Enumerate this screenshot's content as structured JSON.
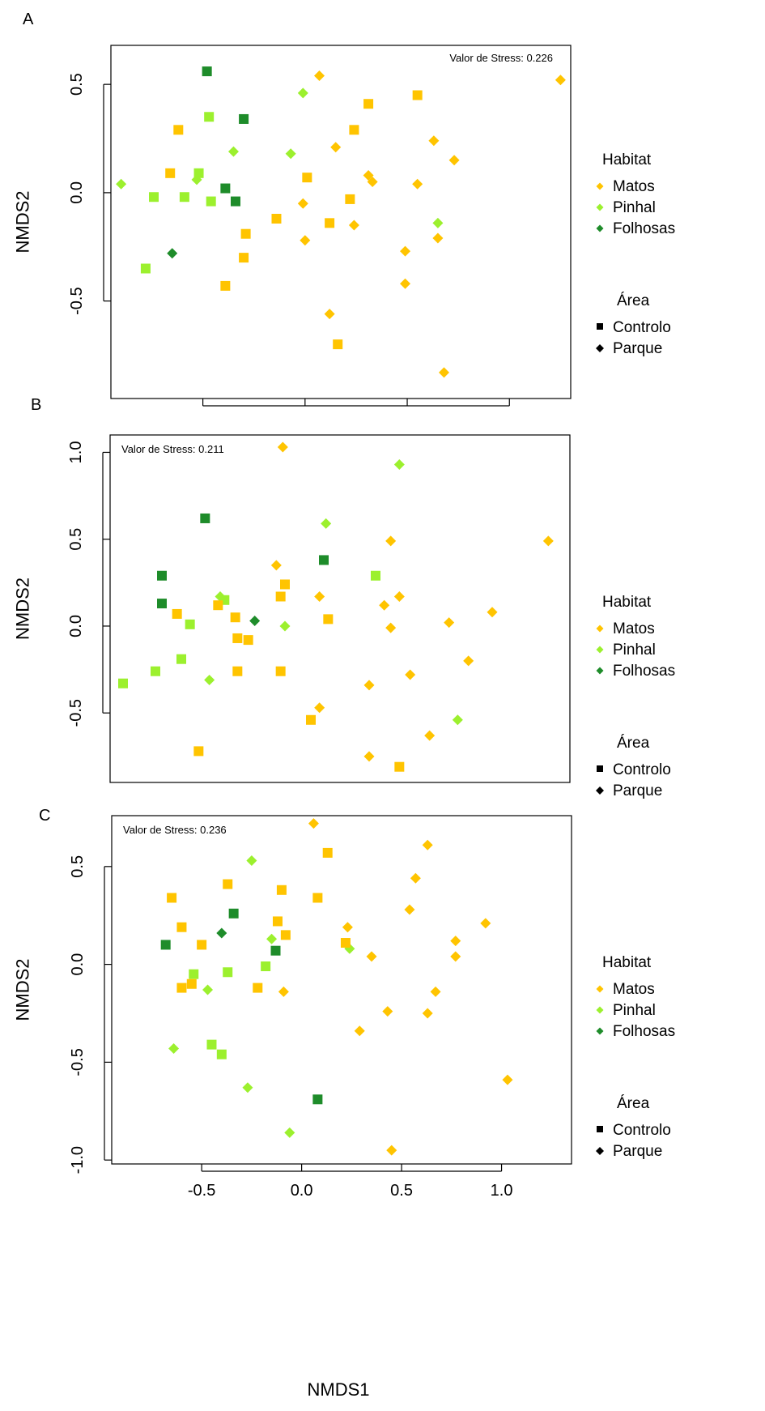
{
  "panels_common": {
    "ylabel": "NMDS2",
    "xlabel": "NMDS1",
    "legend": {
      "habitat_title": "Habitat",
      "habitat": [
        {
          "label": "Matos",
          "color": "#FFC400"
        },
        {
          "label": "Pinhal",
          "color": "#9CF02E"
        },
        {
          "label": "Folhosas",
          "color": "#1E8C2A"
        }
      ],
      "area_title": "Área",
      "area": [
        {
          "label": "Controlo",
          "shape": "square"
        },
        {
          "label": "Parque",
          "shape": "diamond"
        }
      ]
    }
  },
  "chart_data": [
    {
      "type": "scatter",
      "panel_letter": "A",
      "stress_label": "Valor de Stress: 0.226",
      "stress_position": "top-right",
      "legend_placement": "right",
      "grid": false,
      "xlim": [
        -0.95,
        1.3
      ],
      "ylim": [
        -0.95,
        0.68
      ],
      "yticks": [
        -0.5,
        0.0,
        0.5
      ],
      "ytick_labels": [
        "-0.5",
        "0.0",
        "0.5"
      ],
      "xticks": [
        -0.5,
        0.0,
        0.5,
        1.0
      ],
      "xtick_labels": [],
      "points": [
        {
          "x": -0.48,
          "y": 0.56,
          "habitat": "Folhosas",
          "shape": "square"
        },
        {
          "x": -0.3,
          "y": 0.34,
          "habitat": "Folhosas",
          "shape": "square"
        },
        {
          "x": -0.39,
          "y": 0.02,
          "habitat": "Folhosas",
          "shape": "square"
        },
        {
          "x": -0.34,
          "y": -0.04,
          "habitat": "Folhosas",
          "shape": "square"
        },
        {
          "x": -0.65,
          "y": -0.28,
          "habitat": "Folhosas",
          "shape": "diamond"
        },
        {
          "x": -0.47,
          "y": 0.35,
          "habitat": "Pinhal",
          "shape": "square"
        },
        {
          "x": -0.52,
          "y": 0.09,
          "habitat": "Pinhal",
          "shape": "square"
        },
        {
          "x": -0.53,
          "y": 0.06,
          "habitat": "Pinhal",
          "shape": "diamond"
        },
        {
          "x": -0.74,
          "y": -0.02,
          "habitat": "Pinhal",
          "shape": "square"
        },
        {
          "x": -0.59,
          "y": -0.02,
          "habitat": "Pinhal",
          "shape": "square"
        },
        {
          "x": -0.46,
          "y": -0.04,
          "habitat": "Pinhal",
          "shape": "square"
        },
        {
          "x": -0.9,
          "y": 0.04,
          "habitat": "Pinhal",
          "shape": "diamond"
        },
        {
          "x": -0.78,
          "y": -0.35,
          "habitat": "Pinhal",
          "shape": "square"
        },
        {
          "x": -0.35,
          "y": 0.19,
          "habitat": "Pinhal",
          "shape": "diamond"
        },
        {
          "x": -0.07,
          "y": 0.18,
          "habitat": "Pinhal",
          "shape": "diamond"
        },
        {
          "x": -0.01,
          "y": 0.46,
          "habitat": "Pinhal",
          "shape": "diamond"
        },
        {
          "x": 0.65,
          "y": -0.14,
          "habitat": "Pinhal",
          "shape": "diamond"
        },
        {
          "x": -0.62,
          "y": 0.29,
          "habitat": "Matos",
          "shape": "square"
        },
        {
          "x": -0.66,
          "y": 0.09,
          "habitat": "Matos",
          "shape": "square"
        },
        {
          "x": -0.14,
          "y": -0.12,
          "habitat": "Matos",
          "shape": "square"
        },
        {
          "x": -0.29,
          "y": -0.19,
          "habitat": "Matos",
          "shape": "square"
        },
        {
          "x": -0.3,
          "y": -0.3,
          "habitat": "Matos",
          "shape": "square"
        },
        {
          "x": -0.39,
          "y": -0.43,
          "habitat": "Matos",
          "shape": "square"
        },
        {
          "x": 0.07,
          "y": 0.54,
          "habitat": "Matos",
          "shape": "diamond"
        },
        {
          "x": 0.31,
          "y": 0.41,
          "habitat": "Matos",
          "shape": "square"
        },
        {
          "x": 0.55,
          "y": 0.45,
          "habitat": "Matos",
          "shape": "square"
        },
        {
          "x": 0.24,
          "y": 0.29,
          "habitat": "Matos",
          "shape": "square"
        },
        {
          "x": 0.63,
          "y": 0.24,
          "habitat": "Matos",
          "shape": "diamond"
        },
        {
          "x": 0.15,
          "y": 0.21,
          "habitat": "Matos",
          "shape": "diamond"
        },
        {
          "x": 0.73,
          "y": 0.15,
          "habitat": "Matos",
          "shape": "diamond"
        },
        {
          "x": 0.01,
          "y": 0.07,
          "habitat": "Matos",
          "shape": "square"
        },
        {
          "x": 0.31,
          "y": 0.08,
          "habitat": "Matos",
          "shape": "diamond"
        },
        {
          "x": 0.33,
          "y": 0.05,
          "habitat": "Matos",
          "shape": "diamond"
        },
        {
          "x": 0.55,
          "y": 0.04,
          "habitat": "Matos",
          "shape": "diamond"
        },
        {
          "x": -0.01,
          "y": -0.05,
          "habitat": "Matos",
          "shape": "diamond"
        },
        {
          "x": 0.22,
          "y": -0.03,
          "habitat": "Matos",
          "shape": "square"
        },
        {
          "x": 0.12,
          "y": -0.14,
          "habitat": "Matos",
          "shape": "square"
        },
        {
          "x": 0.24,
          "y": -0.15,
          "habitat": "Matos",
          "shape": "diamond"
        },
        {
          "x": 0.65,
          "y": -0.21,
          "habitat": "Matos",
          "shape": "diamond"
        },
        {
          "x": 0.0,
          "y": -0.22,
          "habitat": "Matos",
          "shape": "diamond"
        },
        {
          "x": 0.49,
          "y": -0.27,
          "habitat": "Matos",
          "shape": "diamond"
        },
        {
          "x": 0.49,
          "y": -0.42,
          "habitat": "Matos",
          "shape": "diamond"
        },
        {
          "x": 0.12,
          "y": -0.56,
          "habitat": "Matos",
          "shape": "diamond"
        },
        {
          "x": 0.16,
          "y": -0.7,
          "habitat": "Matos",
          "shape": "square"
        },
        {
          "x": 0.68,
          "y": -0.83,
          "habitat": "Matos",
          "shape": "diamond"
        },
        {
          "x": 1.25,
          "y": 0.52,
          "habitat": "Matos",
          "shape": "diamond"
        }
      ]
    },
    {
      "type": "scatter",
      "panel_letter": "B",
      "stress_label": "Valor de Stress: 0.211",
      "stress_position": "top-left",
      "legend_placement": "right",
      "grid": false,
      "xlim": [
        -0.88,
        1.25
      ],
      "ylim": [
        -0.9,
        1.1
      ],
      "yticks": [
        -0.5,
        0.0,
        0.5,
        1.0
      ],
      "ytick_labels": [
        "-0.5",
        "0.0",
        "0.5",
        "1.0"
      ],
      "xticks": [],
      "xtick_labels": [],
      "points": [
        {
          "x": -0.44,
          "y": 0.62,
          "habitat": "Folhosas",
          "shape": "square"
        },
        {
          "x": -0.64,
          "y": 0.29,
          "habitat": "Folhosas",
          "shape": "square"
        },
        {
          "x": -0.64,
          "y": 0.13,
          "habitat": "Folhosas",
          "shape": "square"
        },
        {
          "x": 0.11,
          "y": 0.38,
          "habitat": "Folhosas",
          "shape": "square"
        },
        {
          "x": -0.21,
          "y": 0.03,
          "habitat": "Folhosas",
          "shape": "diamond"
        },
        {
          "x": 0.46,
          "y": 0.93,
          "habitat": "Pinhal",
          "shape": "diamond"
        },
        {
          "x": 0.12,
          "y": 0.59,
          "habitat": "Pinhal",
          "shape": "diamond"
        },
        {
          "x": 0.35,
          "y": 0.29,
          "habitat": "Pinhal",
          "shape": "square"
        },
        {
          "x": -0.37,
          "y": 0.17,
          "habitat": "Pinhal",
          "shape": "diamond"
        },
        {
          "x": -0.35,
          "y": 0.15,
          "habitat": "Pinhal",
          "shape": "square"
        },
        {
          "x": -0.51,
          "y": 0.01,
          "habitat": "Pinhal",
          "shape": "square"
        },
        {
          "x": -0.07,
          "y": 0.0,
          "habitat": "Pinhal",
          "shape": "diamond"
        },
        {
          "x": -0.55,
          "y": -0.19,
          "habitat": "Pinhal",
          "shape": "square"
        },
        {
          "x": -0.67,
          "y": -0.26,
          "habitat": "Pinhal",
          "shape": "square"
        },
        {
          "x": -0.82,
          "y": -0.33,
          "habitat": "Pinhal",
          "shape": "square"
        },
        {
          "x": -0.42,
          "y": -0.31,
          "habitat": "Pinhal",
          "shape": "diamond"
        },
        {
          "x": 0.73,
          "y": -0.54,
          "habitat": "Pinhal",
          "shape": "diamond"
        },
        {
          "x": -0.08,
          "y": 1.03,
          "habitat": "Matos",
          "shape": "diamond"
        },
        {
          "x": -0.11,
          "y": 0.35,
          "habitat": "Matos",
          "shape": "diamond"
        },
        {
          "x": -0.07,
          "y": 0.24,
          "habitat": "Matos",
          "shape": "square"
        },
        {
          "x": -0.09,
          "y": 0.17,
          "habitat": "Matos",
          "shape": "square"
        },
        {
          "x": 0.09,
          "y": 0.17,
          "habitat": "Matos",
          "shape": "diamond"
        },
        {
          "x": -0.38,
          "y": 0.12,
          "habitat": "Matos",
          "shape": "square"
        },
        {
          "x": -0.57,
          "y": 0.07,
          "habitat": "Matos",
          "shape": "square"
        },
        {
          "x": -0.3,
          "y": 0.05,
          "habitat": "Matos",
          "shape": "square"
        },
        {
          "x": 0.13,
          "y": 0.04,
          "habitat": "Matos",
          "shape": "square"
        },
        {
          "x": -0.29,
          "y": -0.07,
          "habitat": "Matos",
          "shape": "square"
        },
        {
          "x": -0.24,
          "y": -0.08,
          "habitat": "Matos",
          "shape": "square"
        },
        {
          "x": -0.29,
          "y": -0.26,
          "habitat": "Matos",
          "shape": "square"
        },
        {
          "x": -0.09,
          "y": -0.26,
          "habitat": "Matos",
          "shape": "square"
        },
        {
          "x": 0.42,
          "y": 0.49,
          "habitat": "Matos",
          "shape": "diamond"
        },
        {
          "x": 1.15,
          "y": 0.49,
          "habitat": "Matos",
          "shape": "diamond"
        },
        {
          "x": 0.39,
          "y": 0.12,
          "habitat": "Matos",
          "shape": "diamond"
        },
        {
          "x": 0.46,
          "y": 0.17,
          "habitat": "Matos",
          "shape": "diamond"
        },
        {
          "x": 0.42,
          "y": -0.01,
          "habitat": "Matos",
          "shape": "diamond"
        },
        {
          "x": 0.69,
          "y": 0.02,
          "habitat": "Matos",
          "shape": "diamond"
        },
        {
          "x": 0.89,
          "y": 0.08,
          "habitat": "Matos",
          "shape": "diamond"
        },
        {
          "x": 0.78,
          "y": -0.2,
          "habitat": "Matos",
          "shape": "diamond"
        },
        {
          "x": 0.51,
          "y": -0.28,
          "habitat": "Matos",
          "shape": "diamond"
        },
        {
          "x": 0.32,
          "y": -0.34,
          "habitat": "Matos",
          "shape": "diamond"
        },
        {
          "x": 0.09,
          "y": -0.47,
          "habitat": "Matos",
          "shape": "diamond"
        },
        {
          "x": 0.05,
          "y": -0.54,
          "habitat": "Matos",
          "shape": "square"
        },
        {
          "x": 0.6,
          "y": -0.63,
          "habitat": "Matos",
          "shape": "diamond"
        },
        {
          "x": -0.47,
          "y": -0.72,
          "habitat": "Matos",
          "shape": "square"
        },
        {
          "x": 0.32,
          "y": -0.75,
          "habitat": "Matos",
          "shape": "diamond"
        },
        {
          "x": 0.46,
          "y": -0.81,
          "habitat": "Matos",
          "shape": "square"
        }
      ]
    },
    {
      "type": "scatter",
      "panel_letter": "C",
      "stress_label": "Valor de Stress: 0.236",
      "stress_position": "top-left",
      "legend_placement": "right",
      "grid": false,
      "xlim": [
        -0.95,
        1.35
      ],
      "ylim": [
        -1.02,
        0.76
      ],
      "yticks": [
        -1.0,
        -0.5,
        0.0,
        0.5
      ],
      "ytick_labels": [
        "-1.0",
        "-0.5",
        "0.0",
        "0.5"
      ],
      "xticks": [
        -0.5,
        0.0,
        0.5,
        1.0
      ],
      "xtick_labels": [
        "-0.5",
        "0.0",
        "0.5",
        "1.0"
      ],
      "points": [
        {
          "x": -0.34,
          "y": 0.26,
          "habitat": "Folhosas",
          "shape": "square"
        },
        {
          "x": -0.68,
          "y": 0.1,
          "habitat": "Folhosas",
          "shape": "square"
        },
        {
          "x": -0.4,
          "y": 0.16,
          "habitat": "Folhosas",
          "shape": "diamond"
        },
        {
          "x": -0.13,
          "y": 0.07,
          "habitat": "Folhosas",
          "shape": "square"
        },
        {
          "x": 0.08,
          "y": -0.69,
          "habitat": "Folhosas",
          "shape": "square"
        },
        {
          "x": -0.25,
          "y": 0.53,
          "habitat": "Pinhal",
          "shape": "diamond"
        },
        {
          "x": -0.15,
          "y": 0.13,
          "habitat": "Pinhal",
          "shape": "diamond"
        },
        {
          "x": -0.18,
          "y": -0.01,
          "habitat": "Pinhal",
          "shape": "square"
        },
        {
          "x": 0.24,
          "y": 0.08,
          "habitat": "Pinhal",
          "shape": "diamond"
        },
        {
          "x": -0.54,
          "y": -0.05,
          "habitat": "Pinhal",
          "shape": "square"
        },
        {
          "x": -0.37,
          "y": -0.04,
          "habitat": "Pinhal",
          "shape": "square"
        },
        {
          "x": -0.47,
          "y": -0.13,
          "habitat": "Pinhal",
          "shape": "diamond"
        },
        {
          "x": -0.64,
          "y": -0.43,
          "habitat": "Pinhal",
          "shape": "diamond"
        },
        {
          "x": -0.45,
          "y": -0.41,
          "habitat": "Pinhal",
          "shape": "square"
        },
        {
          "x": -0.4,
          "y": -0.46,
          "habitat": "Pinhal",
          "shape": "square"
        },
        {
          "x": -0.27,
          "y": -0.63,
          "habitat": "Pinhal",
          "shape": "diamond"
        },
        {
          "x": -0.06,
          "y": -0.86,
          "habitat": "Pinhal",
          "shape": "diamond"
        },
        {
          "x": 0.06,
          "y": 0.72,
          "habitat": "Matos",
          "shape": "diamond"
        },
        {
          "x": 0.13,
          "y": 0.57,
          "habitat": "Matos",
          "shape": "square"
        },
        {
          "x": 0.63,
          "y": 0.61,
          "habitat": "Matos",
          "shape": "diamond"
        },
        {
          "x": 0.57,
          "y": 0.44,
          "habitat": "Matos",
          "shape": "diamond"
        },
        {
          "x": -0.37,
          "y": 0.41,
          "habitat": "Matos",
          "shape": "square"
        },
        {
          "x": -0.1,
          "y": 0.38,
          "habitat": "Matos",
          "shape": "square"
        },
        {
          "x": 0.08,
          "y": 0.34,
          "habitat": "Matos",
          "shape": "square"
        },
        {
          "x": -0.65,
          "y": 0.34,
          "habitat": "Matos",
          "shape": "square"
        },
        {
          "x": 0.54,
          "y": 0.28,
          "habitat": "Matos",
          "shape": "diamond"
        },
        {
          "x": -0.12,
          "y": 0.22,
          "habitat": "Matos",
          "shape": "square"
        },
        {
          "x": 0.92,
          "y": 0.21,
          "habitat": "Matos",
          "shape": "diamond"
        },
        {
          "x": 0.23,
          "y": 0.19,
          "habitat": "Matos",
          "shape": "diamond"
        },
        {
          "x": -0.6,
          "y": 0.19,
          "habitat": "Matos",
          "shape": "square"
        },
        {
          "x": -0.08,
          "y": 0.15,
          "habitat": "Matos",
          "shape": "square"
        },
        {
          "x": 0.77,
          "y": 0.12,
          "habitat": "Matos",
          "shape": "diamond"
        },
        {
          "x": 0.22,
          "y": 0.11,
          "habitat": "Matos",
          "shape": "square"
        },
        {
          "x": -0.5,
          "y": 0.1,
          "habitat": "Matos",
          "shape": "square"
        },
        {
          "x": 0.35,
          "y": 0.04,
          "habitat": "Matos",
          "shape": "diamond"
        },
        {
          "x": 0.77,
          "y": 0.04,
          "habitat": "Matos",
          "shape": "diamond"
        },
        {
          "x": -0.6,
          "y": -0.12,
          "habitat": "Matos",
          "shape": "square"
        },
        {
          "x": -0.55,
          "y": -0.1,
          "habitat": "Matos",
          "shape": "square"
        },
        {
          "x": -0.22,
          "y": -0.12,
          "habitat": "Matos",
          "shape": "square"
        },
        {
          "x": -0.09,
          "y": -0.14,
          "habitat": "Matos",
          "shape": "diamond"
        },
        {
          "x": 0.67,
          "y": -0.14,
          "habitat": "Matos",
          "shape": "diamond"
        },
        {
          "x": 0.43,
          "y": -0.24,
          "habitat": "Matos",
          "shape": "diamond"
        },
        {
          "x": 0.63,
          "y": -0.25,
          "habitat": "Matos",
          "shape": "diamond"
        },
        {
          "x": 0.29,
          "y": -0.34,
          "habitat": "Matos",
          "shape": "diamond"
        },
        {
          "x": 1.03,
          "y": -0.59,
          "habitat": "Matos",
          "shape": "diamond"
        },
        {
          "x": 0.45,
          "y": -0.95,
          "habitat": "Matos",
          "shape": "diamond"
        }
      ]
    }
  ]
}
